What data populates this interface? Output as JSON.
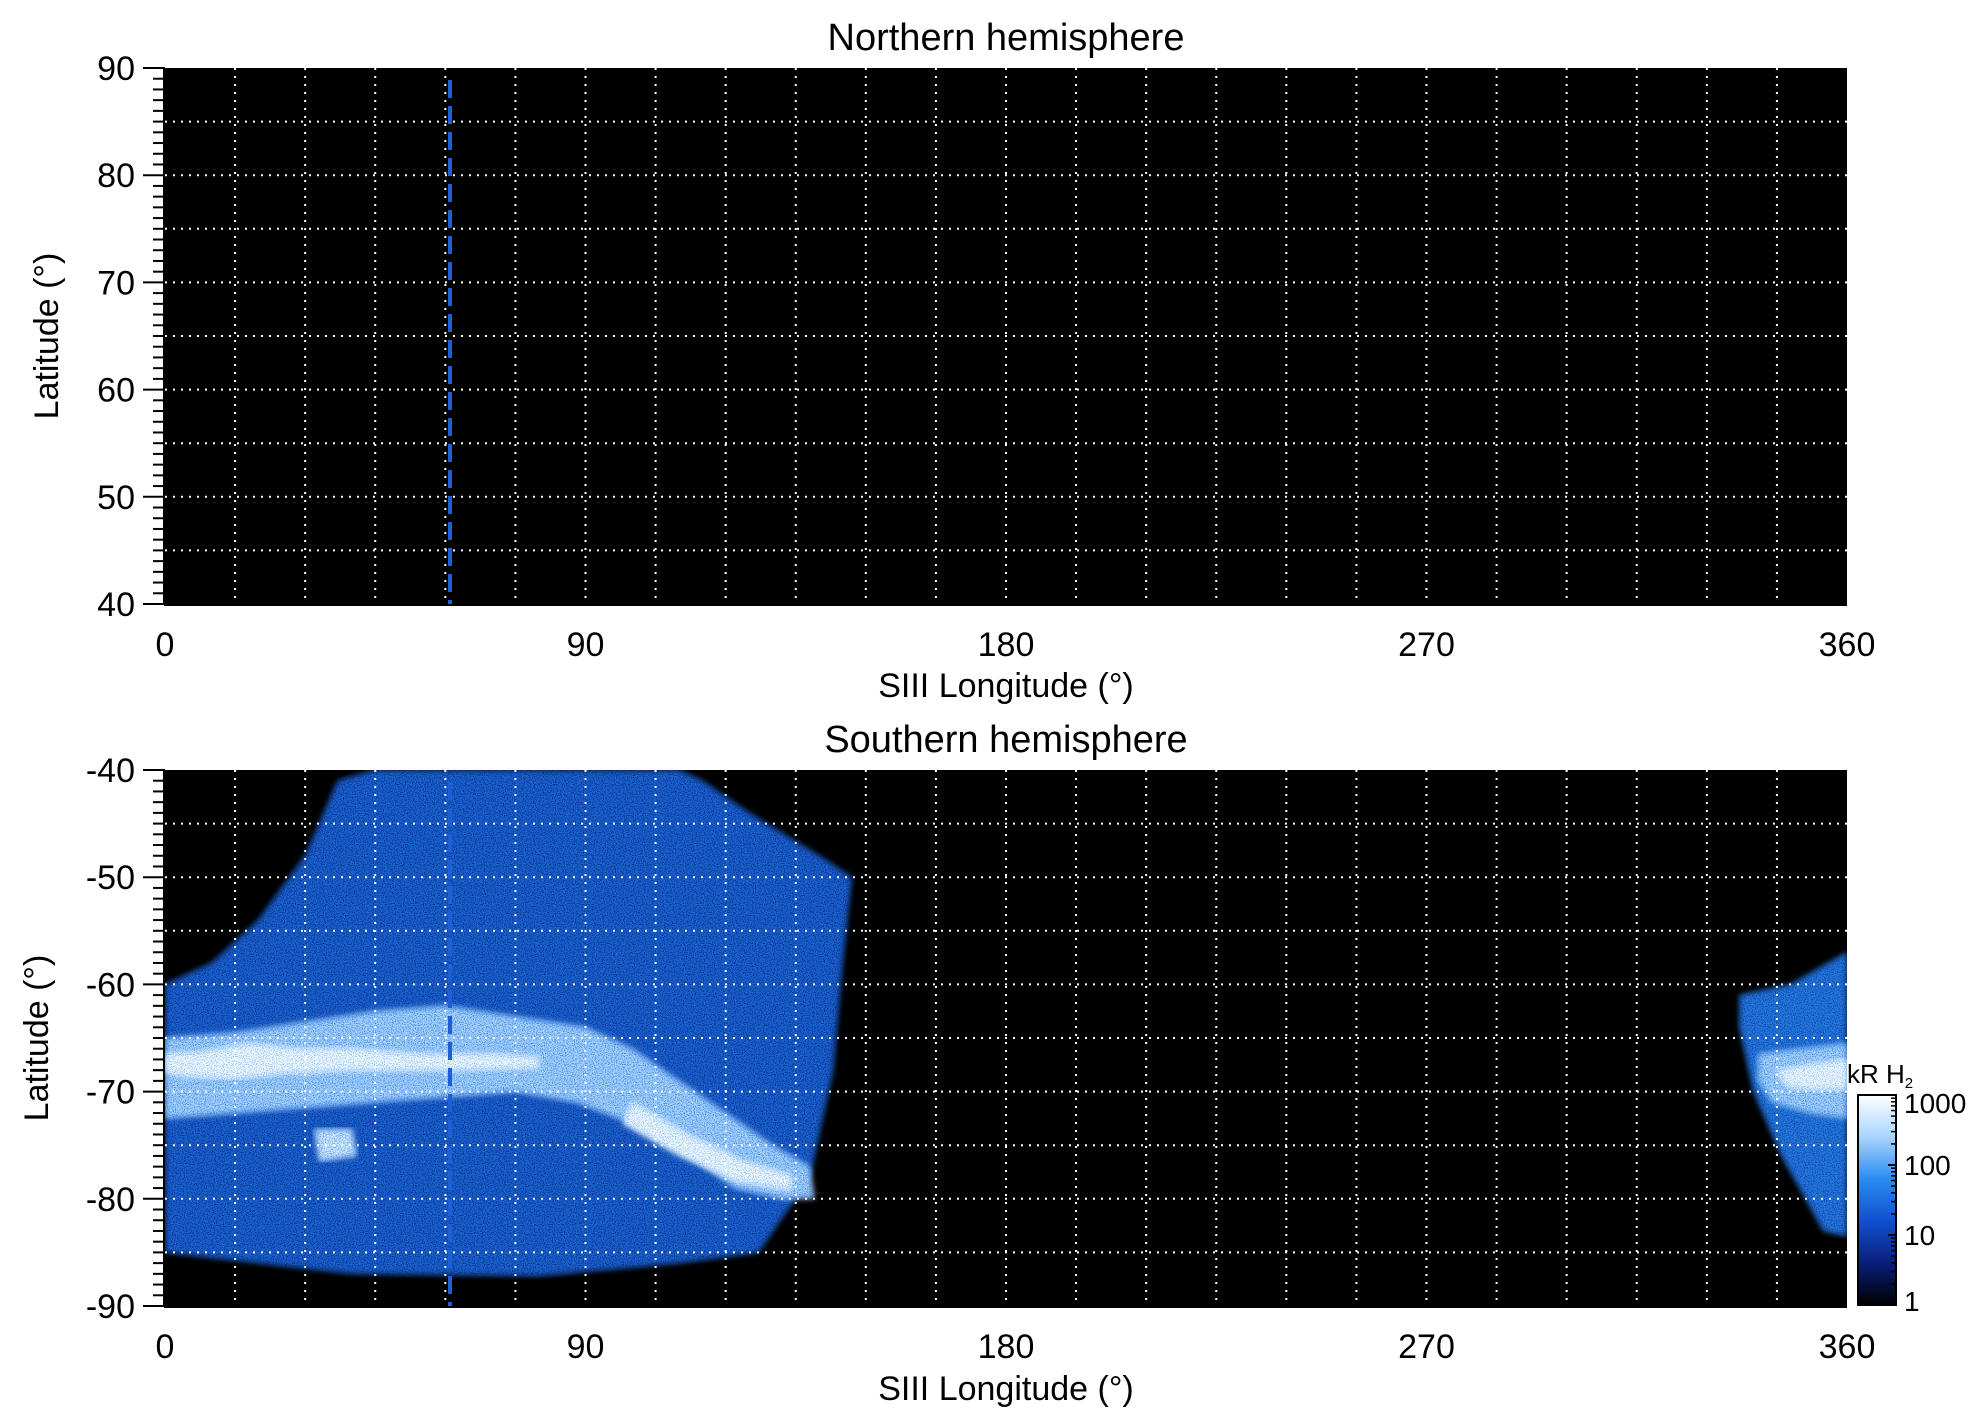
{
  "chart_data": [
    {
      "type": "heatmap",
      "title": "Northern hemisphere",
      "xlabel": "SIII Longitude (°)",
      "ylabel": "Latitude (°)",
      "xlim": [
        0,
        360
      ],
      "ylim": [
        40,
        90
      ],
      "xticks": [
        0,
        90,
        180,
        270,
        360
      ],
      "yticks": [
        40,
        50,
        60,
        70,
        80,
        90
      ],
      "x_gridlines": [
        15,
        30,
        45,
        60,
        75,
        90,
        105,
        120,
        135,
        150,
        165,
        180,
        195,
        210,
        225,
        240,
        255,
        270,
        285,
        300,
        315,
        330,
        345
      ],
      "y_gridlines": [
        45,
        50,
        55,
        60,
        65,
        70,
        75,
        80,
        85
      ],
      "grid": true,
      "background": "#000000",
      "emission_regions": [],
      "reference_line": {
        "x": 61,
        "style": "dashed",
        "color": "#1f5fd6"
      }
    },
    {
      "type": "heatmap",
      "title": "Southern hemisphere",
      "xlabel": "SIII Longitude (°)",
      "ylabel": "Latitude (°)",
      "xlim": [
        0,
        360
      ],
      "ylim": [
        -90,
        -40
      ],
      "xticks": [
        0,
        90,
        180,
        270,
        360
      ],
      "yticks": [
        -40,
        -50,
        -60,
        -70,
        -80,
        -90
      ],
      "x_gridlines": [
        15,
        30,
        45,
        60,
        75,
        90,
        105,
        120,
        135,
        150,
        165,
        180,
        195,
        210,
        225,
        240,
        255,
        270,
        285,
        300,
        315,
        330,
        345
      ],
      "y_gridlines": [
        -45,
        -50,
        -55,
        -60,
        -65,
        -70,
        -75,
        -80,
        -85
      ],
      "grid": true,
      "background": "#000000",
      "emission_regions": [
        {
          "description": "diffuse emission",
          "boundary": [
            [
              0,
              -60
            ],
            [
              10,
              -58
            ],
            [
              20,
              -54
            ],
            [
              30,
              -48
            ],
            [
              37,
              -41
            ],
            [
              45,
              -40
            ],
            [
              60,
              -40
            ],
            [
              80,
              -40
            ],
            [
              95,
              -40
            ],
            [
              110,
              -40
            ],
            [
              115,
              -41
            ],
            [
              125,
              -44
            ],
            [
              140,
              -48
            ],
            [
              147,
              -50
            ],
            [
              145,
              -58
            ],
            [
              143,
              -68
            ],
            [
              138,
              -78
            ],
            [
              127,
              -85
            ],
            [
              110,
              -86
            ],
            [
              80,
              -87.2
            ],
            [
              40,
              -87
            ],
            [
              20,
              -86
            ],
            [
              0,
              -85
            ]
          ],
          "level_kR": 30
        },
        {
          "description": "main auroral oval",
          "boundary": [
            [
              0,
              -65
            ],
            [
              15,
              -64.5
            ],
            [
              30,
              -63.5
            ],
            [
              45,
              -62.5
            ],
            [
              60,
              -62
            ],
            [
              75,
              -63
            ],
            [
              90,
              -64
            ],
            [
              100,
              -66
            ],
            [
              110,
              -69
            ],
            [
              120,
              -72
            ],
            [
              130,
              -75
            ],
            [
              138,
              -77
            ],
            [
              139,
              -80
            ],
            [
              132,
              -80
            ],
            [
              122,
              -79
            ],
            [
              112,
              -76
            ],
            [
              100,
              -73
            ],
            [
              88,
              -71
            ],
            [
              75,
              -70
            ],
            [
              60,
              -70.5
            ],
            [
              45,
              -71
            ],
            [
              30,
              -71.5
            ],
            [
              15,
              -72
            ],
            [
              0,
              -72.5
            ]
          ],
          "level_kR": 300
        },
        {
          "description": "bright band",
          "boundary": [
            [
              0,
              -66.5
            ],
            [
              8,
              -66.3
            ],
            [
              18,
              -65.5
            ],
            [
              28,
              -66
            ],
            [
              40,
              -66
            ],
            [
              55,
              -66.5
            ],
            [
              70,
              -66.5
            ],
            [
              80,
              -66.8
            ],
            [
              80,
              -67.8
            ],
            [
              60,
              -68
            ],
            [
              40,
              -68
            ],
            [
              25,
              -68.3
            ],
            [
              15,
              -68.8
            ],
            [
              5,
              -68.6
            ],
            [
              0,
              -68.2
            ]
          ],
          "level_kR": 1000
        },
        {
          "description": "bright arc",
          "boundary": [
            [
              100,
              -71
            ],
            [
              112,
              -74
            ],
            [
              124,
              -76.5
            ],
            [
              134,
              -77.8
            ],
            [
              134,
              -79.2
            ],
            [
              122,
              -78.3
            ],
            [
              110,
              -76
            ],
            [
              98,
              -73
            ]
          ],
          "level_kR": 1000
        },
        {
          "description": "bright patch",
          "boundary": [
            [
              32,
              -73.5
            ],
            [
              40,
              -73.5
            ],
            [
              41,
              -76
            ],
            [
              33,
              -76.5
            ]
          ],
          "level_kR": 600
        },
        {
          "description": "emission near 360",
          "boundary": [
            [
              337,
              -61
            ],
            [
              348,
              -60
            ],
            [
              360,
              -57
            ],
            [
              360,
              -83.5
            ],
            [
              355,
              -83
            ],
            [
              346,
              -76
            ],
            [
              340,
              -70
            ],
            [
              337,
              -64
            ]
          ],
          "level_kR": 50
        },
        {
          "description": "oval near 360",
          "boundary": [
            [
              341,
              -66.5
            ],
            [
              350,
              -66
            ],
            [
              360,
              -65.5
            ],
            [
              360,
              -72.5
            ],
            [
              352,
              -72
            ],
            [
              344,
              -71
            ],
            [
              341,
              -69
            ]
          ],
          "level_kR": 300
        },
        {
          "description": "bright band near 360",
          "boundary": [
            [
              345,
              -68
            ],
            [
              352,
              -67.5
            ],
            [
              360,
              -67
            ],
            [
              360,
              -69.8
            ],
            [
              352,
              -69.8
            ],
            [
              347,
              -69.5
            ]
          ],
          "level_kR": 1000
        }
      ],
      "reference_line": {
        "x": 61,
        "style": "dashed",
        "color": "#1f5fd6"
      },
      "colorbar": {
        "label": "kR H",
        "label_subscript": "2",
        "scale": "log",
        "range": [
          1,
          1000
        ],
        "ticks": [
          "1000",
          "100",
          "10",
          "1"
        ],
        "tick_values": [
          1000,
          100,
          10,
          1
        ],
        "colors": [
          "#000000",
          "#0a1e7a",
          "#1050d0",
          "#2a8cf0",
          "#a8d4ff",
          "#ffffff"
        ]
      }
    }
  ]
}
